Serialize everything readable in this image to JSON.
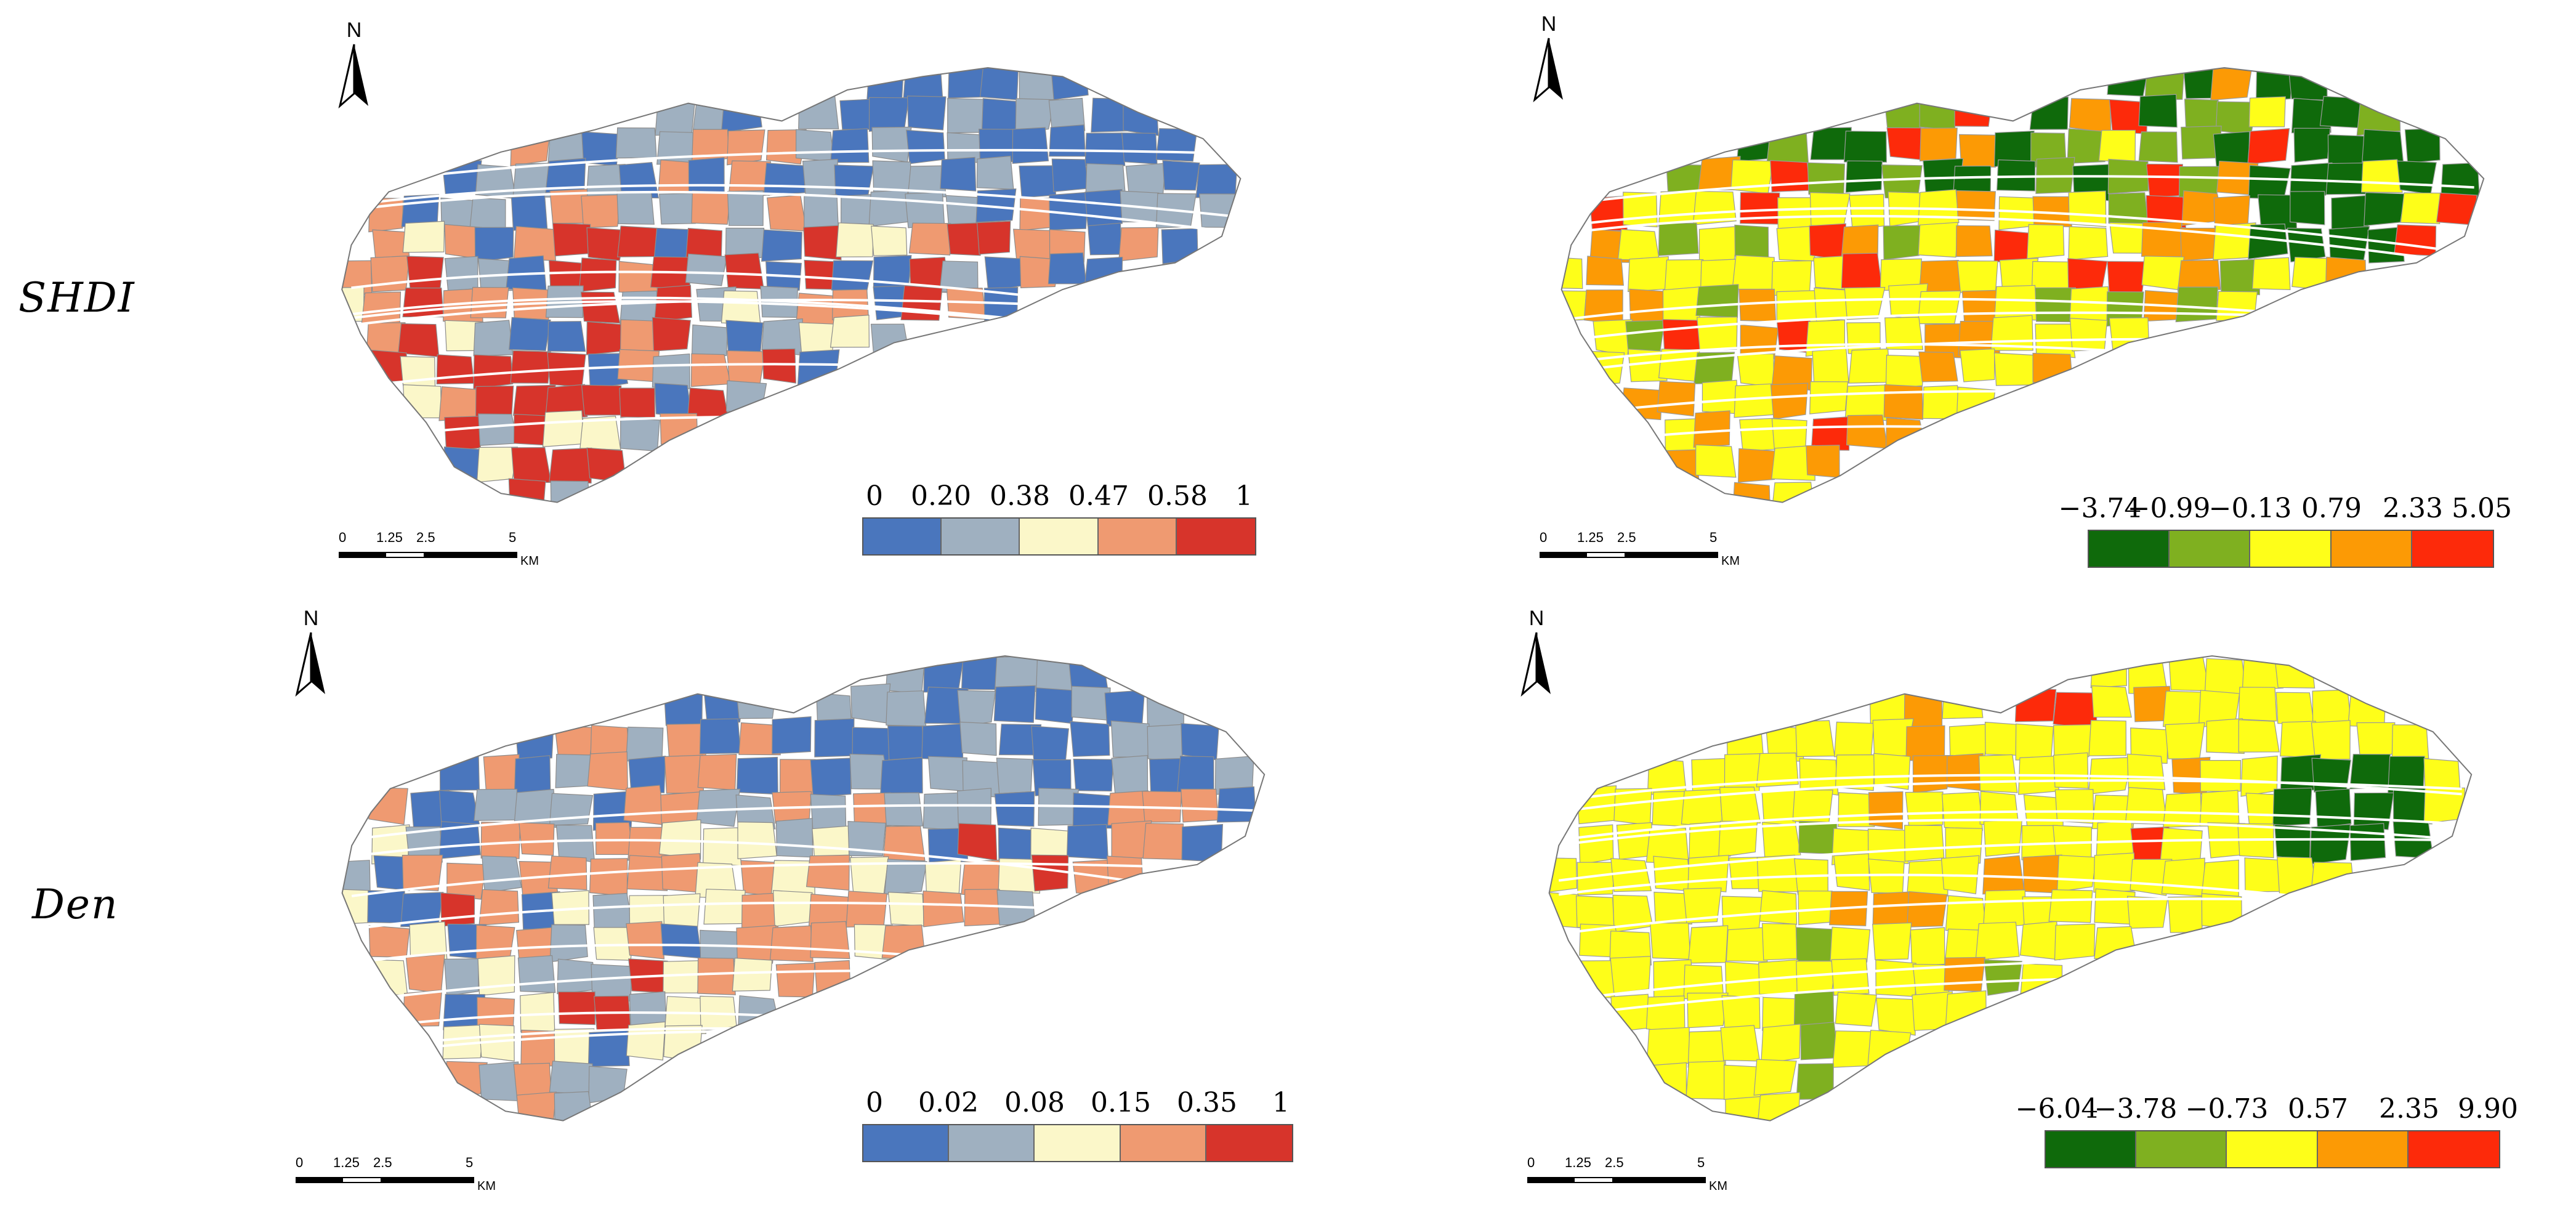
{
  "rows": [
    {
      "label": "SHDI"
    },
    {
      "label": "Den"
    }
  ],
  "panels": [
    {
      "id": "shdi-value",
      "scheme": "diverging-blue-red",
      "legend": {
        "breaks": [
          "0",
          "0.20",
          "0.38",
          "0.47",
          "0.58",
          "1"
        ],
        "colors": [
          "#4a76bd",
          "#9fb0c0",
          "#fbf7c9",
          "#ef9a71",
          "#d7342b"
        ]
      }
    },
    {
      "id": "shdi-coefficient",
      "scheme": "green-yellow-red",
      "legend": {
        "breaks": [
          "−3.74",
          "−0.99",
          "−0.13",
          "0.79",
          "2.33",
          "5.05"
        ],
        "colors": [
          "#0f6a0b",
          "#7fb020",
          "#fefe19",
          "#fc9a05",
          "#fd2a0a"
        ]
      }
    },
    {
      "id": "den-value",
      "scheme": "diverging-blue-red",
      "legend": {
        "breaks": [
          "0",
          "0.02",
          "0.08",
          "0.15",
          "0.35",
          "1"
        ],
        "colors": [
          "#4a76bd",
          "#9fb0c0",
          "#fbf7c9",
          "#ef9a71",
          "#d7342b"
        ]
      }
    },
    {
      "id": "den-coefficient",
      "scheme": "green-yellow-red",
      "legend": {
        "breaks": [
          "−6.04",
          "−3.78",
          "−0.73",
          "0.57",
          "2.35",
          "9.90"
        ],
        "colors": [
          "#0f6a0b",
          "#7fb020",
          "#fefe19",
          "#fc9a05",
          "#fd2a0a"
        ]
      }
    }
  ],
  "north_arrow": {
    "letter": "N"
  },
  "scalebar": {
    "ticks": [
      "0",
      "1.25",
      "2.5",
      "5"
    ],
    "unit": "KM"
  }
}
